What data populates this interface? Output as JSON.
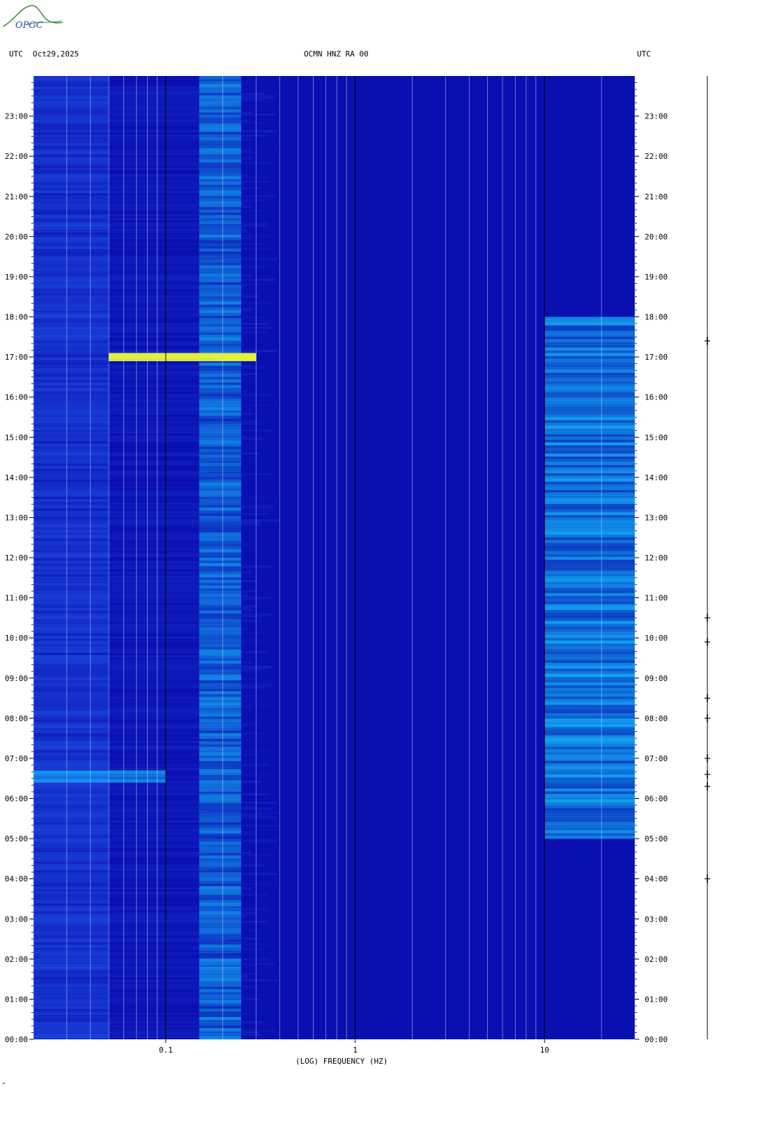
{
  "header": {
    "logo_text": "OPGC",
    "left_label": "UTC",
    "date": "Oct29,2025",
    "station": "OCMN HNZ RA 00",
    "right_label": "UTC"
  },
  "footer": {
    "mark": "\""
  },
  "colors": {
    "background": "#0a0fb0",
    "band_cyan": "#14c8ff",
    "band_light": "#2a6cff",
    "highlight_yellow": "#e6f23a",
    "gridline_white": "#c8d2ff",
    "gridline_black": "#000000"
  },
  "chart_data": {
    "type": "heatmap",
    "title": "OCMN HNZ RA 00",
    "xlabel": "(LOG) FREQUENCY (HZ)",
    "ylabel": "UTC",
    "x_scale": "log",
    "xlim": [
      0.02,
      30
    ],
    "x_ticks": [
      0.1,
      1,
      10
    ],
    "x_tick_labels": [
      "0.1",
      "1",
      "10"
    ],
    "ylim": [
      0,
      24
    ],
    "y_ticks": [
      0,
      1,
      2,
      3,
      4,
      5,
      6,
      7,
      8,
      9,
      10,
      11,
      12,
      13,
      14,
      15,
      16,
      17,
      18,
      19,
      20,
      21,
      22,
      23
    ],
    "y_tick_labels": [
      "00:00",
      "01:00",
      "02:00",
      "03:00",
      "04:00",
      "05:00",
      "06:00",
      "07:00",
      "08:00",
      "09:00",
      "10:00",
      "11:00",
      "12:00",
      "13:00",
      "14:00",
      "15:00",
      "16:00",
      "17:00",
      "18:00",
      "19:00",
      "20:00",
      "21:00",
      "22:00",
      "23:00"
    ],
    "grid": true,
    "features": [
      {
        "name": "microseism band",
        "freq_range": [
          0.15,
          0.25
        ],
        "time_range": [
          0,
          24
        ],
        "intensity": 0.6
      },
      {
        "name": "low-frequency band",
        "freq_range": [
          0.02,
          0.05
        ],
        "time_range": [
          0,
          24
        ],
        "intensity": 0.35
      },
      {
        "name": "17:00 event",
        "freq_range": [
          0.05,
          0.3
        ],
        "time_range": [
          16.9,
          17.1
        ],
        "intensity": 1.0
      },
      {
        "name": "06:30 event",
        "freq_range": [
          0.02,
          0.1
        ],
        "time_range": [
          6.4,
          6.7
        ],
        "intensity": 0.7
      },
      {
        "name": "high-frequency noise",
        "freq_range": [
          10,
          30
        ],
        "time_range": [
          5,
          18
        ],
        "intensity": 0.8
      }
    ],
    "seismogram_events_hours": [
      17.4,
      10.5,
      9.9,
      8.5,
      8.0,
      7.0,
      6.6,
      6.3,
      4.0
    ]
  }
}
